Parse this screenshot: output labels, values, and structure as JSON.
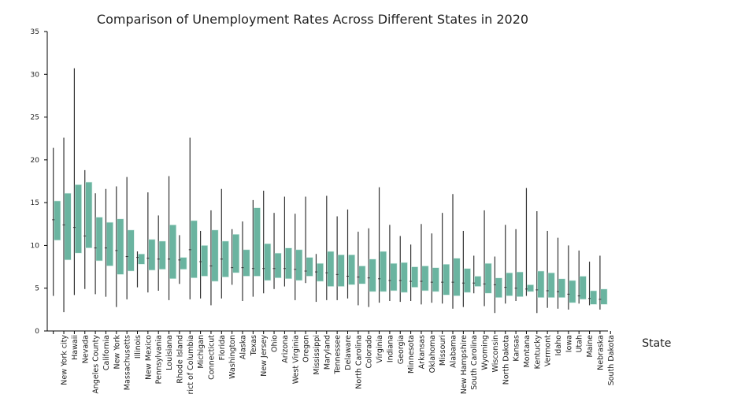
{
  "chart_data": {
    "type": "box",
    "title": "Comparison of Unemployment Rates Across Different States in 2020",
    "xlabel": "State",
    "ylabel": "",
    "ylim": [
      0,
      35
    ],
    "yticks": [
      0,
      5,
      10,
      15,
      20,
      25,
      30,
      35
    ],
    "grid": false,
    "legend": "none",
    "box_color": "#6ab4a0",
    "line_color": "#333333",
    "categories": [
      "New York city",
      "Hawaii",
      "Nevada",
      "Los Angeles County",
      "California",
      "New York",
      "Massachusetts",
      "Illinois",
      "New Mexico",
      "Pennsylvania",
      "Louisiana",
      "Rhode Island",
      "District of Columbia",
      "Michigan",
      "Connecticut",
      "Florida",
      "Washington",
      "Alaska",
      "Texas",
      "New Jersey",
      "Ohio",
      "Arizona",
      "West Virginia",
      "Oregon",
      "Mississippi",
      "Maryland",
      "Tennessee",
      "Delaware",
      "North Carolina",
      "Colorado",
      "Virginia",
      "Indiana",
      "Georgia",
      "Minnesota",
      "Arkansas",
      "Oklahoma",
      "Missouri",
      "Alabama",
      "New Hampshire",
      "South Carolina",
      "Wyoming",
      "Wisconsin",
      "North Dakota",
      "Kansas",
      "Montana",
      "Kentucky",
      "Vermont",
      "Idaho",
      "Iowa",
      "Utah",
      "Maine",
      "Nebraska",
      "South Dakota"
    ],
    "series": [
      {
        "name": "min",
        "values": [
          4.1,
          2.2,
          4.2,
          4.9,
          4.3,
          4.0,
          2.8,
          3.7,
          5.1,
          4.5,
          4.7,
          3.6,
          5.5,
          3.7,
          3.8,
          3.0,
          3.8,
          5.4,
          3.5,
          4.0,
          4.4,
          4.9,
          5.2,
          3.6,
          5.6,
          3.4,
          3.6,
          3.6,
          3.8,
          3.0,
          2.8,
          3.3,
          3.5,
          3.4,
          3.5,
          3.1,
          3.3,
          3.2,
          2.6,
          2.8,
          4.4,
          2.9,
          2.1,
          3.2,
          3.5,
          4.1,
          2.1,
          2.7,
          2.6,
          2.5,
          3.2,
          3.0,
          2.5
        ]
      },
      {
        "name": "q1",
        "values": [
          10.6,
          8.3,
          9.1,
          9.7,
          8.2,
          7.6,
          6.6,
          7.0,
          7.8,
          7.1,
          7.2,
          6.1,
          7.2,
          6.2,
          6.4,
          5.8,
          6.3,
          6.8,
          6.4,
          6.4,
          5.9,
          6.2,
          6.1,
          5.9,
          6.4,
          5.8,
          5.2,
          5.2,
          5.4,
          5.5,
          4.6,
          4.6,
          4.7,
          4.5,
          5.1,
          4.7,
          4.6,
          4.2,
          4.1,
          4.5,
          5.2,
          4.4,
          3.9,
          4.1,
          4.0,
          4.6,
          3.9,
          3.9,
          3.9,
          3.3,
          3.7,
          3.1,
          3.1
        ]
      },
      {
        "name": "median",
        "values": [
          13.0,
          12.4,
          12.1,
          11.1,
          9.7,
          9.7,
          9.4,
          8.7,
          8.6,
          8.5,
          8.4,
          8.4,
          8.3,
          9.5,
          8.1,
          7.6,
          8.4,
          7.4,
          7.4,
          7.3,
          7.3,
          7.3,
          7.3,
          7.2,
          7.0,
          6.9,
          6.8,
          6.6,
          6.4,
          6.3,
          6.2,
          6.1,
          5.9,
          5.9,
          5.8,
          5.8,
          5.7,
          5.7,
          5.7,
          5.6,
          5.6,
          5.5,
          5.4,
          5.1,
          5.0,
          4.9,
          4.8,
          4.7,
          4.6,
          4.3,
          4.1,
          3.8,
          3.7
        ]
      },
      {
        "name": "q3",
        "values": [
          15.2,
          16.1,
          17.1,
          17.4,
          13.3,
          12.7,
          13.1,
          11.8,
          9.0,
          10.7,
          10.5,
          12.4,
          8.6,
          12.9,
          10.0,
          11.8,
          10.5,
          11.3,
          9.5,
          14.4,
          10.2,
          9.1,
          9.7,
          9.5,
          8.6,
          7.9,
          9.3,
          8.9,
          8.9,
          7.6,
          8.4,
          9.3,
          7.9,
          8.0,
          7.5,
          7.6,
          7.4,
          7.8,
          8.5,
          7.3,
          6.4,
          7.9,
          6.2,
          6.8,
          6.9,
          5.4,
          7.0,
          6.8,
          6.1,
          5.9,
          6.4,
          4.7,
          4.9
        ]
      },
      {
        "name": "max",
        "values": [
          21.4,
          22.6,
          30.7,
          18.8,
          16.1,
          16.6,
          16.9,
          18.0,
          9.3,
          16.2,
          13.5,
          18.1,
          11.2,
          22.6,
          11.7,
          14.1,
          16.6,
          11.9,
          12.8,
          15.3,
          16.4,
          13.8,
          15.7,
          13.7,
          15.7,
          9.0,
          15.8,
          13.4,
          14.2,
          11.6,
          12.0,
          16.8,
          12.4,
          11.1,
          10.1,
          12.5,
          11.4,
          13.8,
          16.0,
          11.7,
          8.8,
          14.1,
          8.7,
          12.4,
          11.9,
          16.7,
          14.0,
          11.7,
          10.9,
          10.0,
          9.4,
          8.1,
          8.8
        ]
      }
    ]
  }
}
